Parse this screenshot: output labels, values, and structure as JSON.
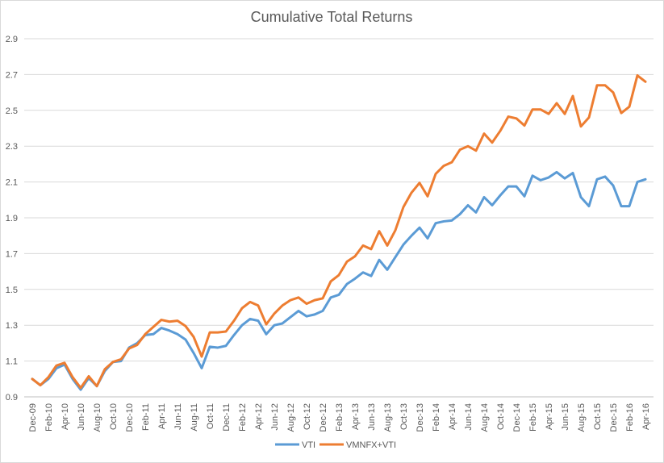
{
  "chart_data": {
    "type": "line",
    "title": "Cumulative Total Returns",
    "xlabel": "",
    "ylabel": "",
    "ylim": [
      0.9,
      2.9
    ],
    "yticks": [
      "0.9",
      "1.1",
      "1.3",
      "1.5",
      "1.7",
      "1.9",
      "2.1",
      "2.3",
      "2.5",
      "2.7",
      "2.9"
    ],
    "grid": "horizontal",
    "legend_position": "bottom",
    "x_tick_labels": [
      "Dec-09",
      "Feb-10",
      "Apr-10",
      "Jun-10",
      "Aug-10",
      "Oct-10",
      "Dec-10",
      "Feb-11",
      "Apr-11",
      "Jun-11",
      "Aug-11",
      "Oct-11",
      "Dec-11",
      "Feb-12",
      "Apr-12",
      "Jun-12",
      "Aug-12",
      "Oct-12",
      "Dec-12",
      "Feb-13",
      "Apr-13",
      "Jun-13",
      "Aug-13",
      "Oct-13",
      "Dec-13",
      "Feb-14",
      "Apr-14",
      "Jun-14",
      "Aug-14",
      "Oct-14",
      "Dec-14",
      "Feb-15",
      "Apr-15",
      "Jun-15",
      "Aug-15",
      "Oct-15",
      "Dec-15",
      "Feb-16",
      "Apr-16"
    ],
    "x": [
      "Dec-09",
      "Jan-10",
      "Feb-10",
      "Mar-10",
      "Apr-10",
      "May-10",
      "Jun-10",
      "Jul-10",
      "Aug-10",
      "Sep-10",
      "Oct-10",
      "Nov-10",
      "Dec-10",
      "Jan-11",
      "Feb-11",
      "Mar-11",
      "Apr-11",
      "May-11",
      "Jun-11",
      "Jul-11",
      "Aug-11",
      "Sep-11",
      "Oct-11",
      "Nov-11",
      "Dec-11",
      "Jan-12",
      "Feb-12",
      "Mar-12",
      "Apr-12",
      "May-12",
      "Jun-12",
      "Jul-12",
      "Aug-12",
      "Sep-12",
      "Oct-12",
      "Nov-12",
      "Dec-12",
      "Jan-13",
      "Feb-13",
      "Mar-13",
      "Apr-13",
      "May-13",
      "Jun-13",
      "Jul-13",
      "Aug-13",
      "Sep-13",
      "Oct-13",
      "Nov-13",
      "Dec-13",
      "Jan-14",
      "Feb-14",
      "Mar-14",
      "Apr-14",
      "May-14",
      "Jun-14",
      "Jul-14",
      "Aug-14",
      "Sep-14",
      "Oct-14",
      "Nov-14",
      "Dec-14",
      "Jan-15",
      "Feb-15",
      "Mar-15",
      "Apr-15",
      "May-15",
      "Jun-15",
      "Jul-15",
      "Aug-15",
      "Sep-15",
      "Oct-15",
      "Nov-15",
      "Dec-15",
      "Jan-16",
      "Feb-16",
      "Mar-16",
      "Apr-16"
    ],
    "series": [
      {
        "name": "VTI",
        "color": "#5b9bd5",
        "values": [
          1.0,
          0.965,
          1.0,
          1.06,
          1.08,
          1.0,
          0.94,
          1.005,
          0.96,
          1.045,
          1.095,
          1.1,
          1.175,
          1.2,
          1.245,
          1.25,
          1.285,
          1.27,
          1.25,
          1.22,
          1.145,
          1.06,
          1.18,
          1.175,
          1.185,
          1.245,
          1.3,
          1.335,
          1.325,
          1.25,
          1.3,
          1.31,
          1.345,
          1.38,
          1.35,
          1.36,
          1.38,
          1.455,
          1.47,
          1.53,
          1.56,
          1.595,
          1.575,
          1.665,
          1.61,
          1.68,
          1.75,
          1.8,
          1.845,
          1.785,
          1.87,
          1.88,
          1.885,
          1.92,
          1.97,
          1.93,
          2.015,
          1.97,
          2.025,
          2.075,
          2.075,
          2.02,
          2.135,
          2.11,
          2.125,
          2.155,
          2.12,
          2.15,
          2.015,
          1.965,
          2.115,
          2.13,
          2.08,
          1.965,
          1.965,
          2.1,
          2.115
        ]
      },
      {
        "name": "VMNFX+VTI",
        "color": "#ed7d31",
        "values": [
          1.0,
          0.965,
          1.01,
          1.075,
          1.09,
          1.01,
          0.95,
          1.015,
          0.96,
          1.055,
          1.095,
          1.11,
          1.17,
          1.19,
          1.25,
          1.29,
          1.33,
          1.32,
          1.325,
          1.295,
          1.235,
          1.125,
          1.26,
          1.26,
          1.265,
          1.325,
          1.395,
          1.43,
          1.41,
          1.305,
          1.365,
          1.41,
          1.44,
          1.455,
          1.42,
          1.44,
          1.45,
          1.545,
          1.58,
          1.655,
          1.685,
          1.745,
          1.725,
          1.825,
          1.745,
          1.83,
          1.96,
          2.04,
          2.095,
          2.02,
          2.145,
          2.19,
          2.21,
          2.28,
          2.3,
          2.275,
          2.37,
          2.32,
          2.385,
          2.465,
          2.455,
          2.415,
          2.505,
          2.505,
          2.48,
          2.54,
          2.48,
          2.58,
          2.41,
          2.46,
          2.64,
          2.64,
          2.6,
          2.485,
          2.52,
          2.695,
          2.66
        ]
      }
    ]
  }
}
